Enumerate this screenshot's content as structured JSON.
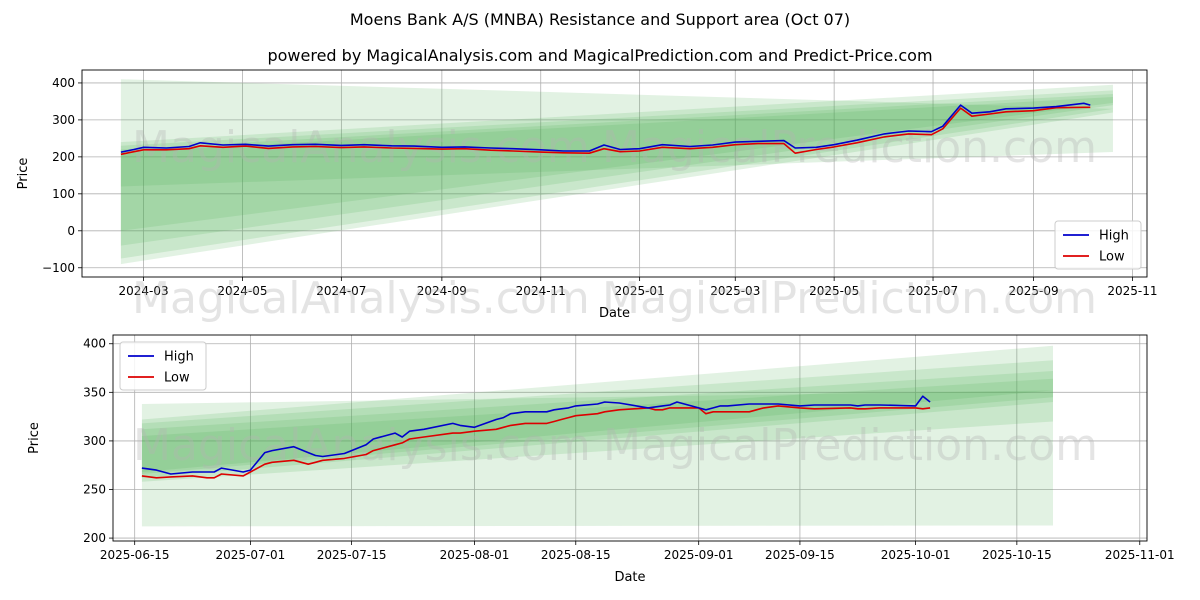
{
  "title": "Moens Bank A/S (MNBA) Resistance and Support area (Oct 07)",
  "subtitle": "powered by MagicalAnalysis.com and MagicalPrediction.com and Predict-Price.com",
  "watermarks": [
    "MagicalAnalysis.com",
    "MagicalPrediction.com"
  ],
  "colors": {
    "high": "#0000cc",
    "low": "#dd0000",
    "band": "#4caf50",
    "grid": "#b0b0b0"
  },
  "chart_data": [
    {
      "type": "line",
      "xlabel": "Date",
      "ylabel": "Price",
      "xlim": [
        "2024-01-23",
        "2025-11-10"
      ],
      "ylim": [
        -125,
        435
      ],
      "x_ticks": [
        "2024-03",
        "2024-05",
        "2024-07",
        "2024-09",
        "2024-11",
        "2025-01",
        "2025-03",
        "2025-05",
        "2025-07",
        "2025-09",
        "2025-11"
      ],
      "x_tick_dates": [
        "2024-03-01",
        "2024-05-01",
        "2024-07-01",
        "2024-09-01",
        "2024-11-01",
        "2025-01-01",
        "2025-03-01",
        "2025-05-01",
        "2025-07-01",
        "2025-09-01",
        "2025-11-01"
      ],
      "y_ticks": [
        400,
        300,
        200,
        100,
        0,
        -100
      ],
      "y_tick_labels": [
        "400",
        "300",
        "200",
        "100",
        "0",
        "−100"
      ],
      "legend": "bottom-right",
      "grid": true,
      "series": [
        {
          "name": "High",
          "color": "#0000cc",
          "x": [
            "2024-02-16",
            "2024-02-24",
            "2024-03-01",
            "2024-03-15",
            "2024-03-29",
            "2024-04-05",
            "2024-04-19",
            "2024-05-03",
            "2024-05-17",
            "2024-06-01",
            "2024-06-15",
            "2024-07-01",
            "2024-07-15",
            "2024-08-01",
            "2024-08-15",
            "2024-09-01",
            "2024-09-15",
            "2024-10-01",
            "2024-10-15",
            "2024-11-01",
            "2024-11-15",
            "2024-12-01",
            "2024-12-10",
            "2024-12-20",
            "2025-01-01",
            "2025-01-15",
            "2025-02-01",
            "2025-02-15",
            "2025-03-01",
            "2025-03-15",
            "2025-03-31",
            "2025-04-07",
            "2025-04-20",
            "2025-05-01",
            "2025-05-15",
            "2025-06-01",
            "2025-06-16",
            "2025-06-30",
            "2025-07-07",
            "2025-07-18",
            "2025-07-25",
            "2025-08-05",
            "2025-08-15",
            "2025-09-01",
            "2025-09-15",
            "2025-10-02",
            "2025-10-06"
          ],
          "values": [
            213,
            220,
            226,
            224,
            228,
            238,
            232,
            234,
            229,
            233,
            234,
            231,
            233,
            230,
            229,
            226,
            227,
            224,
            222,
            219,
            216,
            216,
            232,
            220,
            222,
            233,
            228,
            232,
            240,
            242,
            244,
            224,
            226,
            233,
            245,
            262,
            270,
            268,
            283,
            340,
            318,
            322,
            330,
            332,
            336,
            345,
            340
          ]
        },
        {
          "name": "Low",
          "color": "#dd0000",
          "x": [
            "2024-02-16",
            "2024-02-24",
            "2024-03-01",
            "2024-03-15",
            "2024-03-29",
            "2024-04-05",
            "2024-04-19",
            "2024-05-03",
            "2024-05-17",
            "2024-06-01",
            "2024-06-15",
            "2024-07-01",
            "2024-07-15",
            "2024-08-01",
            "2024-08-15",
            "2024-09-01",
            "2024-09-15",
            "2024-10-01",
            "2024-10-15",
            "2024-11-01",
            "2024-11-15",
            "2024-12-01",
            "2024-12-10",
            "2024-12-20",
            "2025-01-01",
            "2025-01-15",
            "2025-02-01",
            "2025-02-15",
            "2025-03-01",
            "2025-03-15",
            "2025-03-31",
            "2025-04-07",
            "2025-04-20",
            "2025-05-01",
            "2025-05-15",
            "2025-06-01",
            "2025-06-16",
            "2025-06-30",
            "2025-07-07",
            "2025-07-18",
            "2025-07-25",
            "2025-08-05",
            "2025-08-15",
            "2025-09-01",
            "2025-09-15",
            "2025-10-02",
            "2025-10-06"
          ],
          "values": [
            207,
            214,
            219,
            219,
            222,
            230,
            226,
            229,
            223,
            227,
            228,
            225,
            227,
            224,
            223,
            221,
            222,
            218,
            216,
            213,
            211,
            210,
            222,
            214,
            216,
            226,
            222,
            226,
            233,
            236,
            236,
            210,
            220,
            227,
            238,
            254,
            262,
            260,
            276,
            332,
            310,
            316,
            322,
            325,
            333,
            334,
            334
          ]
        }
      ],
      "bands": [
        {
          "x": [
            "2024-02-16",
            "2025-10-20"
          ],
          "upper": [
            410,
            330
          ],
          "lower": [
            120,
            213
          ]
        },
        {
          "x": [
            "2024-02-16",
            "2025-10-20"
          ],
          "upper": [
            240,
            395
          ],
          "lower": [
            -90,
            320
          ]
        },
        {
          "x": [
            "2024-02-16",
            "2025-10-20"
          ],
          "upper": [
            230,
            380
          ],
          "lower": [
            -75,
            330
          ]
        },
        {
          "x": [
            "2024-02-16",
            "2025-10-20"
          ],
          "upper": [
            220,
            370
          ],
          "lower": [
            -40,
            340
          ]
        },
        {
          "x": [
            "2024-02-16",
            "2025-10-20"
          ],
          "upper": [
            212,
            362
          ],
          "lower": [
            0,
            346
          ]
        }
      ]
    },
    {
      "type": "line",
      "xlabel": "Date",
      "ylabel": "Price",
      "xlim": [
        "2025-06-12",
        "2025-11-02"
      ],
      "ylim": [
        197,
        409
      ],
      "x_ticks": [
        "2025-06-15",
        "2025-07-01",
        "2025-07-15",
        "2025-08-01",
        "2025-08-15",
        "2025-09-01",
        "2025-09-15",
        "2025-10-01",
        "2025-10-15",
        "2025-11-01"
      ],
      "y_ticks": [
        400,
        350,
        300,
        250,
        200
      ],
      "y_tick_labels": [
        "400",
        "350",
        "300",
        "250",
        "200"
      ],
      "legend": "top-left",
      "grid": true,
      "series": [
        {
          "name": "High",
          "color": "#0000cc",
          "x": [
            "2025-06-16",
            "2025-06-18",
            "2025-06-20",
            "2025-06-23",
            "2025-06-25",
            "2025-06-26",
            "2025-06-27",
            "2025-06-30",
            "2025-07-01",
            "2025-07-03",
            "2025-07-04",
            "2025-07-07",
            "2025-07-09",
            "2025-07-10",
            "2025-07-11",
            "2025-07-14",
            "2025-07-17",
            "2025-07-18",
            "2025-07-21",
            "2025-07-22",
            "2025-07-23",
            "2025-07-25",
            "2025-07-29",
            "2025-07-30",
            "2025-08-01",
            "2025-08-04",
            "2025-08-05",
            "2025-08-06",
            "2025-08-08",
            "2025-08-11",
            "2025-08-12",
            "2025-08-13",
            "2025-08-14",
            "2025-08-15",
            "2025-08-18",
            "2025-08-19",
            "2025-08-21",
            "2025-08-25",
            "2025-08-26",
            "2025-08-27",
            "2025-08-28",
            "2025-08-29",
            "2025-09-01",
            "2025-09-02",
            "2025-09-03",
            "2025-09-04",
            "2025-09-05",
            "2025-09-08",
            "2025-09-09",
            "2025-09-10",
            "2025-09-12",
            "2025-09-15",
            "2025-09-17",
            "2025-09-22",
            "2025-09-23",
            "2025-09-24",
            "2025-09-26",
            "2025-10-01",
            "2025-10-02",
            "2025-10-03"
          ],
          "values": [
            272,
            270,
            266,
            268,
            268,
            268,
            272,
            268,
            270,
            288,
            290,
            294,
            288,
            285,
            284,
            287,
            296,
            302,
            308,
            304,
            310,
            312,
            318,
            316,
            314,
            322,
            324,
            328,
            330,
            330,
            332,
            333,
            334,
            336,
            338,
            340,
            339,
            334,
            335,
            336,
            337,
            340,
            334,
            332,
            334,
            336,
            336,
            338,
            338,
            338,
            338,
            336,
            337,
            337,
            336,
            337,
            337,
            336,
            346,
            340
          ]
        },
        {
          "name": "Low",
          "color": "#dd0000",
          "x": [
            "2025-06-16",
            "2025-06-18",
            "2025-06-20",
            "2025-06-23",
            "2025-06-25",
            "2025-06-26",
            "2025-06-27",
            "2025-06-30",
            "2025-07-01",
            "2025-07-03",
            "2025-07-04",
            "2025-07-07",
            "2025-07-09",
            "2025-07-10",
            "2025-07-11",
            "2025-07-14",
            "2025-07-17",
            "2025-07-18",
            "2025-07-21",
            "2025-07-22",
            "2025-07-23",
            "2025-07-25",
            "2025-07-29",
            "2025-07-30",
            "2025-08-01",
            "2025-08-04",
            "2025-08-05",
            "2025-08-06",
            "2025-08-08",
            "2025-08-11",
            "2025-08-12",
            "2025-08-13",
            "2025-08-14",
            "2025-08-15",
            "2025-08-18",
            "2025-08-19",
            "2025-08-21",
            "2025-08-25",
            "2025-08-26",
            "2025-08-27",
            "2025-08-28",
            "2025-08-29",
            "2025-09-01",
            "2025-09-02",
            "2025-09-03",
            "2025-09-04",
            "2025-09-05",
            "2025-09-08",
            "2025-09-09",
            "2025-09-10",
            "2025-09-12",
            "2025-09-15",
            "2025-09-17",
            "2025-09-22",
            "2025-09-23",
            "2025-09-24",
            "2025-09-26",
            "2025-10-01",
            "2025-10-02",
            "2025-10-03"
          ],
          "values": [
            264,
            262,
            263,
            264,
            262,
            262,
            266,
            264,
            268,
            276,
            278,
            280,
            276,
            278,
            280,
            282,
            286,
            290,
            296,
            298,
            302,
            304,
            308,
            308,
            310,
            312,
            314,
            316,
            318,
            318,
            320,
            322,
            324,
            326,
            328,
            330,
            332,
            334,
            332,
            332,
            334,
            334,
            334,
            328,
            330,
            330,
            330,
            330,
            332,
            334,
            336,
            334,
            333,
            334,
            333,
            333,
            334,
            334,
            333,
            334
          ]
        }
      ],
      "bands": [
        {
          "x": [
            "2025-06-16",
            "2025-10-20"
          ],
          "upper": [
            338,
            352
          ],
          "lower": [
            212,
            213
          ]
        },
        {
          "x": [
            "2025-06-16",
            "2025-10-20"
          ],
          "upper": [
            322,
            398
          ],
          "lower": [
            258,
            320
          ]
        },
        {
          "x": [
            "2025-06-16",
            "2025-10-20"
          ],
          "upper": [
            318,
            383
          ],
          "lower": [
            262,
            340
          ]
        },
        {
          "x": [
            "2025-06-16",
            "2025-10-20"
          ],
          "upper": [
            312,
            372
          ],
          "lower": [
            266,
            345
          ]
        },
        {
          "x": [
            "2025-06-16",
            "2025-10-20"
          ],
          "upper": [
            305,
            364
          ],
          "lower": [
            268,
            352
          ]
        }
      ]
    }
  ]
}
